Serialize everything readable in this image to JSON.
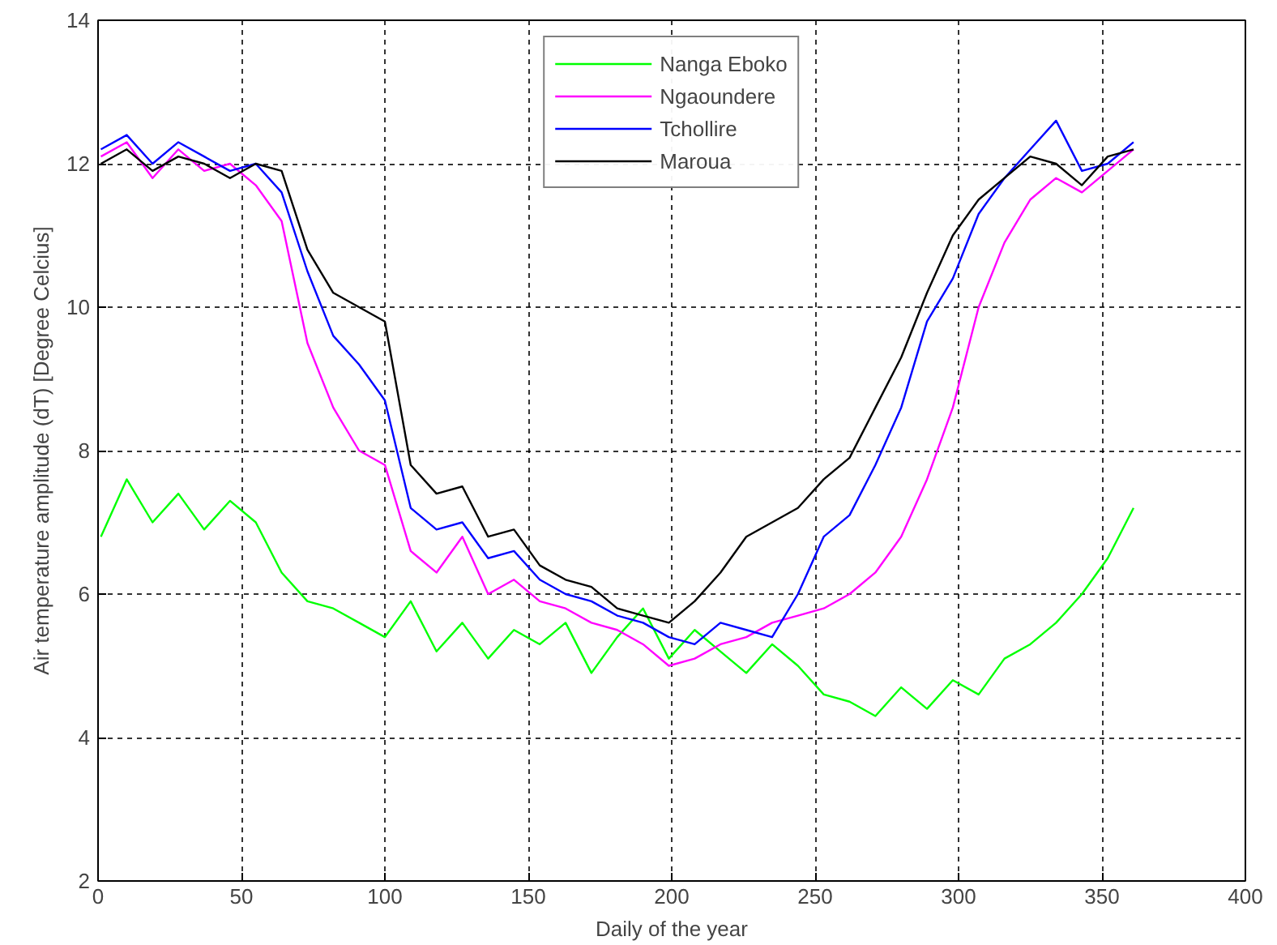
{
  "chart_data": {
    "type": "line",
    "xlabel": "Daily of the year",
    "ylabel": "Air temperature amplitude (dT) [Degree Celcius]",
    "x": [
      1,
      10,
      19,
      28,
      37,
      46,
      55,
      64,
      73,
      82,
      91,
      100,
      109,
      118,
      127,
      136,
      145,
      154,
      163,
      172,
      181,
      190,
      199,
      208,
      217,
      226,
      235,
      244,
      253,
      262,
      271,
      280,
      289,
      298,
      307,
      316,
      325,
      334,
      343,
      352,
      361
    ],
    "series": [
      {
        "name": "Nanga Eboko",
        "color": "#00ff00",
        "values": [
          6.8,
          7.6,
          7.0,
          7.4,
          6.9,
          7.3,
          7.0,
          6.3,
          5.9,
          5.8,
          5.6,
          5.4,
          5.9,
          5.2,
          5.6,
          5.1,
          5.5,
          5.3,
          5.6,
          4.9,
          5.4,
          5.8,
          5.1,
          5.5,
          5.2,
          4.9,
          5.3,
          5.0,
          4.6,
          4.5,
          4.3,
          4.7,
          4.4,
          4.8,
          4.6,
          5.1,
          5.3,
          5.6,
          6.0,
          6.5,
          7.2
        ]
      },
      {
        "name": "Ngaoundere",
        "color": "#ff00ff",
        "values": [
          12.1,
          12.3,
          11.8,
          12.2,
          11.9,
          12.0,
          11.7,
          11.2,
          9.5,
          8.6,
          8.0,
          7.8,
          6.6,
          6.3,
          6.8,
          6.0,
          6.2,
          5.9,
          5.8,
          5.6,
          5.5,
          5.3,
          5.0,
          5.1,
          5.3,
          5.4,
          5.6,
          5.7,
          5.8,
          6.0,
          6.3,
          6.8,
          7.6,
          8.6,
          10.0,
          10.9,
          11.5,
          11.8,
          11.6,
          11.9,
          12.2
        ]
      },
      {
        "name": "Tchollire",
        "color": "#0000ff",
        "values": [
          12.2,
          12.4,
          12.0,
          12.3,
          12.1,
          11.9,
          12.0,
          11.6,
          10.5,
          9.6,
          9.2,
          8.7,
          7.2,
          6.9,
          7.0,
          6.5,
          6.6,
          6.2,
          6.0,
          5.9,
          5.7,
          5.6,
          5.4,
          5.3,
          5.6,
          5.5,
          5.4,
          6.0,
          6.8,
          7.1,
          7.8,
          8.6,
          9.8,
          10.4,
          11.3,
          11.8,
          12.2,
          12.6,
          11.9,
          12.0,
          12.3
        ]
      },
      {
        "name": "Maroua",
        "color": "#000000",
        "values": [
          12.0,
          12.2,
          11.9,
          12.1,
          12.0,
          11.8,
          12.0,
          11.9,
          10.8,
          10.2,
          10.0,
          9.8,
          7.8,
          7.4,
          7.5,
          6.8,
          6.9,
          6.4,
          6.2,
          6.1,
          5.8,
          5.7,
          5.6,
          5.9,
          6.3,
          6.8,
          7.0,
          7.2,
          7.6,
          7.9,
          8.6,
          9.3,
          10.2,
          11.0,
          11.5,
          11.8,
          12.1,
          12.0,
          11.7,
          12.1,
          12.2
        ]
      }
    ],
    "xlim": [
      0,
      400
    ],
    "xticks": [
      0,
      50,
      100,
      150,
      200,
      250,
      300,
      350,
      400
    ],
    "ylim": [
      2,
      14
    ],
    "yticks": [
      2,
      4,
      6,
      8,
      10,
      12,
      14
    ],
    "grid": true,
    "legend": "top",
    "line_style": "solid"
  }
}
